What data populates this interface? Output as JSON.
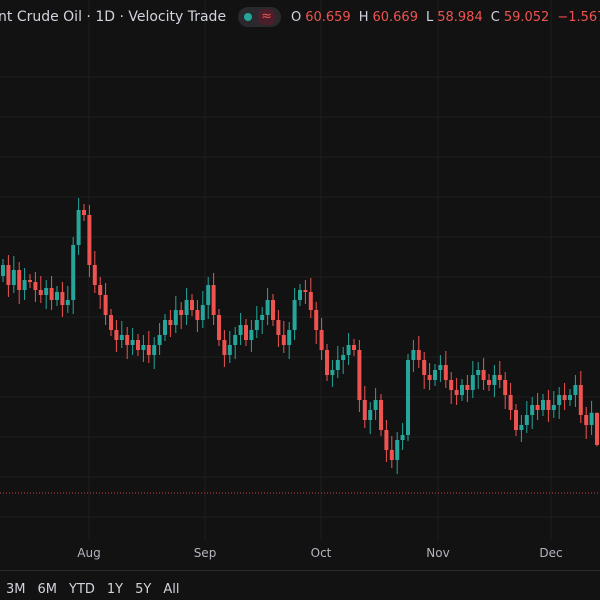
{
  "header": {
    "title": "nt Crude Oil · 1D · Velocity Trade",
    "status_icon": "green-dot",
    "indicator_icon": "approx-wave-icon",
    "ohlc": [
      {
        "label": "O",
        "value": "60.659"
      },
      {
        "label": "H",
        "value": "60.669"
      },
      {
        "label": "L",
        "value": "58.984"
      },
      {
        "label": "C",
        "value": "59.052"
      }
    ],
    "change": "−1.567 (−"
  },
  "colors": {
    "background": "#121212",
    "up": "#26a69a",
    "down": "#ef5350",
    "grid": "#1e1e1e"
  },
  "chart_data": {
    "type": "candlestick",
    "x_tick_labels": [
      "Aug",
      "Sep",
      "Oct",
      "Nov",
      "Dec"
    ],
    "grid": true,
    "last_candle": {
      "open": 60.659,
      "high": 60.669,
      "low": 58.984,
      "close": 59.052
    },
    "closes": [
      68.05,
      67.05,
      67.8,
      66.8,
      67.3,
      67.2,
      66.8,
      66.55,
      66.9,
      66.3,
      66.7,
      66.05,
      66.3,
      69.05,
      70.8,
      70.55,
      68.05,
      67.05,
      66.55,
      65.55,
      64.8,
      64.3,
      64.55,
      64.05,
      64.3,
      63.8,
      64.05,
      63.55,
      64.05,
      64.55,
      65.3,
      65.05,
      65.8,
      65.55,
      66.3,
      65.8,
      65.3,
      66.05,
      67.05,
      65.55,
      64.3,
      63.55,
      64.05,
      64.55,
      65.05,
      64.3,
      64.8,
      65.3,
      65.55,
      66.3,
      65.3,
      64.55,
      64.05,
      64.8,
      66.3,
      66.8,
      66.7,
      65.8,
      64.8,
      63.8,
      62.55,
      62.8,
      63.3,
      63.55,
      64.05,
      63.8,
      61.3,
      60.3,
      60.8,
      61.3,
      59.8,
      58.8,
      58.3,
      59.3,
      59.55,
      63.3,
      63.8,
      63.3,
      62.55,
      62.3,
      62.8,
      63.05,
      62.3,
      61.8,
      61.55,
      62.05,
      61.8,
      62.55,
      62.8,
      62.3,
      62.05,
      62.55,
      62.3,
      61.55,
      60.8,
      59.8,
      60.05,
      60.55,
      61.05,
      60.8,
      61.3,
      60.8,
      61.05,
      61.55,
      61.3,
      61.55,
      62.05,
      60.55,
      60.05,
      60.659,
      59.052
    ]
  },
  "range_buttons": [
    "3M",
    "6M",
    "YTD",
    "1Y",
    "5Y",
    "All"
  ]
}
